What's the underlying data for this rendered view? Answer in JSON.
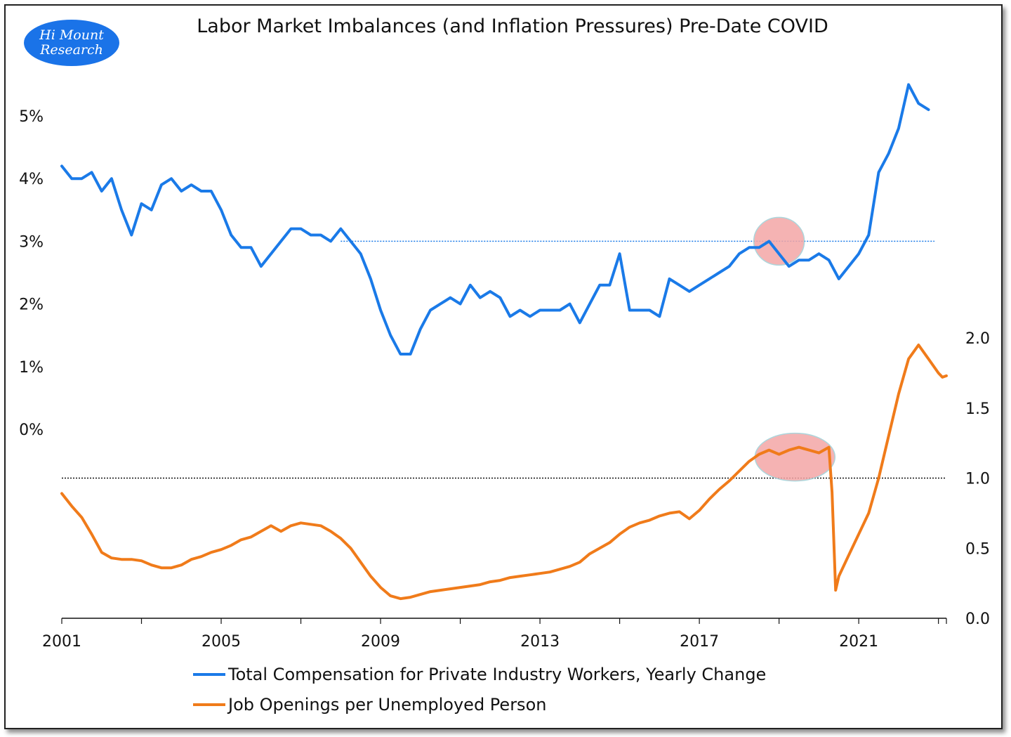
{
  "logo": {
    "line1": "Hi Mount",
    "line2": "Research"
  },
  "title": "Labor Market Imbalances (and Inflation Pressures) Pre-Date COVID",
  "colors": {
    "compensation": "#1a7ae8",
    "openings": "#f07b1a",
    "highlight": "#f4a6a6"
  },
  "chart_data": {
    "type": "line",
    "x_ticks": [
      "2001",
      "2005",
      "2009",
      "2013",
      "2017",
      "2021"
    ],
    "xlim": [
      2001,
      2023.2
    ],
    "left_axis": {
      "ticks": [
        "0%",
        "1%",
        "2%",
        "3%",
        "4%",
        "5%"
      ],
      "ylim": [
        0,
        5.5
      ]
    },
    "right_axis": {
      "ticks": [
        "0.0",
        "0.5",
        "1.0",
        "1.5",
        "2.0"
      ],
      "ylim": [
        0,
        2.0
      ]
    },
    "reference_lines": [
      {
        "series": "compensation",
        "value": 3.0,
        "x_from": 2008.0,
        "x_to": 2022.9,
        "style": "dotted"
      },
      {
        "series": "openings",
        "value": 1.0,
        "style": "dotted"
      }
    ],
    "highlights": [
      {
        "series": "compensation",
        "x_center": 2019.0,
        "y_center": 3.0
      },
      {
        "series": "openings",
        "x_center": 2019.4,
        "y_center": 1.15
      }
    ],
    "series": [
      {
        "name": "Total Compensation for Private Industry Workers, Yearly Change",
        "axis": "left",
        "x": [
          2001.0,
          2001.25,
          2001.5,
          2001.75,
          2002.0,
          2002.25,
          2002.5,
          2002.75,
          2003.0,
          2003.25,
          2003.5,
          2003.75,
          2004.0,
          2004.25,
          2004.5,
          2004.75,
          2005.0,
          2005.25,
          2005.5,
          2005.75,
          2006.0,
          2006.25,
          2006.5,
          2006.75,
          2007.0,
          2007.25,
          2007.5,
          2007.75,
          2008.0,
          2008.25,
          2008.5,
          2008.75,
          2009.0,
          2009.25,
          2009.5,
          2009.75,
          2010.0,
          2010.25,
          2010.5,
          2010.75,
          2011.0,
          2011.25,
          2011.5,
          2011.75,
          2012.0,
          2012.25,
          2012.5,
          2012.75,
          2013.0,
          2013.25,
          2013.5,
          2013.75,
          2014.0,
          2014.25,
          2014.5,
          2014.75,
          2015.0,
          2015.25,
          2015.5,
          2015.75,
          2016.0,
          2016.25,
          2016.5,
          2016.75,
          2017.0,
          2017.25,
          2017.5,
          2017.75,
          2018.0,
          2018.25,
          2018.5,
          2018.75,
          2019.0,
          2019.25,
          2019.5,
          2019.75,
          2020.0,
          2020.25,
          2020.5,
          2020.75,
          2021.0,
          2021.25,
          2021.5,
          2021.75,
          2022.0,
          2022.25,
          2022.5,
          2022.75,
          2023.0
        ],
        "values": [
          4.2,
          4.0,
          4.0,
          4.1,
          3.8,
          4.0,
          3.5,
          3.1,
          3.6,
          3.5,
          3.9,
          4.0,
          3.8,
          3.9,
          3.8,
          3.8,
          3.5,
          3.1,
          2.9,
          2.9,
          2.6,
          2.8,
          3.0,
          3.2,
          3.2,
          3.1,
          3.1,
          3.0,
          3.2,
          3.0,
          2.8,
          2.4,
          1.9,
          1.5,
          1.2,
          1.2,
          1.6,
          1.9,
          2.0,
          2.1,
          2.0,
          2.3,
          2.1,
          2.2,
          2.1,
          1.8,
          1.9,
          1.8,
          1.9,
          1.9,
          1.9,
          2.0,
          1.7,
          2.0,
          2.3,
          2.3,
          2.8,
          1.9,
          1.9,
          1.9,
          1.8,
          2.4,
          2.3,
          2.2,
          2.3,
          2.4,
          2.5,
          2.6,
          2.8,
          2.9,
          2.9,
          3.0,
          2.8,
          2.6,
          2.7,
          2.7,
          2.8,
          2.7,
          2.4,
          2.6,
          2.8,
          3.1,
          4.1,
          4.4,
          4.8,
          5.5,
          5.2,
          5.1,
          null
        ]
      },
      {
        "name": "Job Openings per Unemployed Person",
        "axis": "right",
        "x": [
          2001.0,
          2001.25,
          2001.5,
          2001.75,
          2002.0,
          2002.25,
          2002.5,
          2002.75,
          2003.0,
          2003.25,
          2003.5,
          2003.75,
          2004.0,
          2004.25,
          2004.5,
          2004.75,
          2005.0,
          2005.25,
          2005.5,
          2005.75,
          2006.0,
          2006.25,
          2006.5,
          2006.75,
          2007.0,
          2007.25,
          2007.5,
          2007.75,
          2008.0,
          2008.25,
          2008.5,
          2008.75,
          2009.0,
          2009.25,
          2009.5,
          2009.75,
          2010.0,
          2010.25,
          2010.5,
          2010.75,
          2011.0,
          2011.25,
          2011.5,
          2011.75,
          2012.0,
          2012.25,
          2012.5,
          2012.75,
          2013.0,
          2013.25,
          2013.5,
          2013.75,
          2014.0,
          2014.25,
          2014.5,
          2014.75,
          2015.0,
          2015.25,
          2015.5,
          2015.75,
          2016.0,
          2016.25,
          2016.5,
          2016.75,
          2017.0,
          2017.25,
          2017.5,
          2017.75,
          2018.0,
          2018.25,
          2018.5,
          2018.75,
          2019.0,
          2019.25,
          2019.5,
          2019.75,
          2020.0,
          2020.25,
          2020.33,
          2020.42,
          2020.5,
          2020.75,
          2021.0,
          2021.25,
          2021.5,
          2021.75,
          2022.0,
          2022.25,
          2022.5,
          2022.75,
          2023.0,
          2023.1,
          2023.2
        ],
        "values": [
          0.89,
          0.8,
          0.72,
          0.6,
          0.47,
          0.43,
          0.42,
          0.42,
          0.41,
          0.38,
          0.36,
          0.36,
          0.38,
          0.42,
          0.44,
          0.47,
          0.49,
          0.52,
          0.56,
          0.58,
          0.62,
          0.66,
          0.62,
          0.66,
          0.68,
          0.67,
          0.66,
          0.62,
          0.57,
          0.5,
          0.4,
          0.3,
          0.22,
          0.16,
          0.14,
          0.15,
          0.17,
          0.19,
          0.2,
          0.21,
          0.22,
          0.23,
          0.24,
          0.26,
          0.27,
          0.29,
          0.3,
          0.31,
          0.32,
          0.33,
          0.35,
          0.37,
          0.4,
          0.46,
          0.5,
          0.54,
          0.6,
          0.65,
          0.68,
          0.7,
          0.73,
          0.75,
          0.76,
          0.71,
          0.77,
          0.85,
          0.92,
          0.98,
          1.05,
          1.12,
          1.17,
          1.2,
          1.17,
          1.2,
          1.22,
          1.2,
          1.18,
          1.22,
          0.9,
          0.2,
          0.3,
          0.45,
          0.6,
          0.75,
          1.0,
          1.3,
          1.6,
          1.85,
          1.95,
          1.85,
          1.75,
          1.72,
          1.73
        ]
      }
    ]
  },
  "legend": [
    {
      "label": "Total Compensation for Private Industry Workers, Yearly Change",
      "color": "#1a7ae8"
    },
    {
      "label": "Job Openings per Unemployed Person",
      "color": "#f07b1a"
    }
  ]
}
